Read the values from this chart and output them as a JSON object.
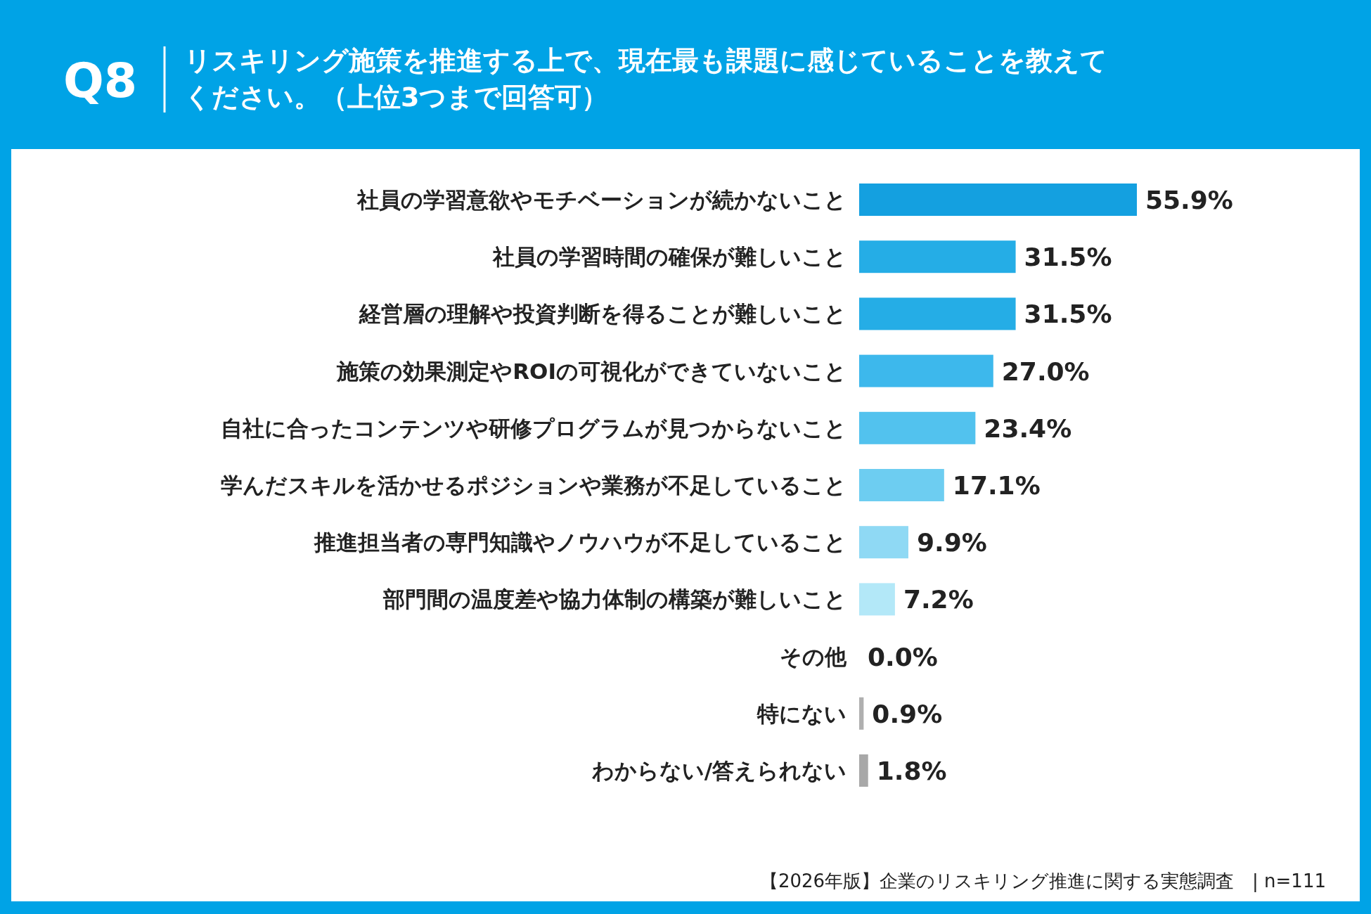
{
  "chart_data": {
    "type": "bar",
    "orientation": "horizontal",
    "title": "Q8",
    "subtitle": "リスキリング施策を推進する上で、現在最も課題に感じていることを教えてください。（上位3つまで回答可）",
    "categories": [
      "社員の学習意欲やモチベーションが続かないこと",
      "社員の学習時間の確保が難しいこと",
      "経営層の理解や投資判断を得ることが難しいこと",
      "施策の効果測定やROIの可視化ができていないこと",
      "自社に合ったコンテンツや研修プログラムが見つからないこと",
      "学んだスキルを活かせるポジションや業務が不足していること",
      "推進担当者の専門知識やノウハウが不足していること",
      "部門間の温度差や協力体制の構築が難しいこと",
      "その他",
      "特にない",
      "わからない/答えられない"
    ],
    "values": [
      55.9,
      31.5,
      31.5,
      27.0,
      23.4,
      17.1,
      9.9,
      7.2,
      0.0,
      0.9,
      1.8
    ],
    "colors": [
      "#14a0e0",
      "#25ade6",
      "#25ade6",
      "#3db8ec",
      "#52c2ee",
      "#6dcdf1",
      "#8fd9f4",
      "#b3e8f8",
      "#b3e8f8",
      "#b0b0b0",
      "#a8a8a8"
    ],
    "value_labels": [
      "55.9%",
      "31.5%",
      "31.5%",
      "27.0%",
      "23.4%",
      "17.1%",
      "9.9%",
      "7.2%",
      "0.0%",
      "0.9%",
      "1.8%"
    ],
    "annotations": [
      "【2026年版】企業のリスキリング推進に関する実態調査　| n=111"
    ]
  }
}
